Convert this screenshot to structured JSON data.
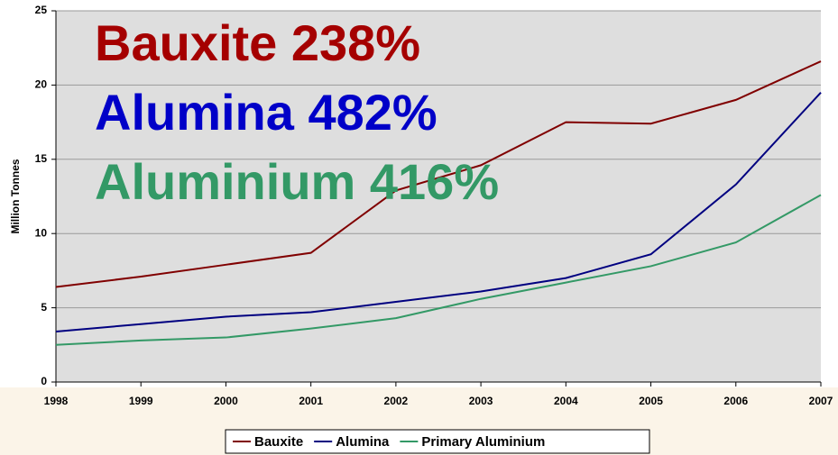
{
  "chart_data": {
    "type": "line",
    "ylabel": "Million Tonnes",
    "x": [
      1998,
      1999,
      2000,
      2001,
      2002,
      2003,
      2004,
      2005,
      2006,
      2007
    ],
    "xlim": [
      1998,
      2007
    ],
    "xticks": [
      1998,
      1999,
      2000,
      2001,
      2002,
      2003,
      2004,
      2005,
      2006,
      2007
    ],
    "ylim": [
      0,
      25
    ],
    "yticks": [
      0,
      5,
      10,
      15,
      20,
      25
    ],
    "grid": true,
    "legend": "bottom",
    "series": [
      {
        "name": "Bauxite",
        "color": "#800000",
        "values": [
          6.4,
          7.1,
          7.9,
          8.7,
          12.9,
          14.6,
          17.5,
          17.4,
          19.0,
          21.6
        ]
      },
      {
        "name": "Alumina",
        "color": "#000080",
        "values": [
          3.4,
          3.9,
          4.4,
          4.7,
          5.4,
          6.1,
          7.0,
          8.6,
          13.3,
          19.5
        ]
      },
      {
        "name": "Primary Aluminium",
        "color": "#339966",
        "values": [
          2.5,
          2.8,
          3.0,
          3.6,
          4.3,
          5.6,
          6.7,
          7.8,
          9.4,
          12.6
        ]
      }
    ],
    "annotations": [
      {
        "text": "Bauxite 238%",
        "color": "#a50000"
      },
      {
        "text": "Alumina 482%",
        "color": "#0000c8"
      },
      {
        "text": "Aluminium 416%",
        "color": "#339966"
      }
    ]
  }
}
